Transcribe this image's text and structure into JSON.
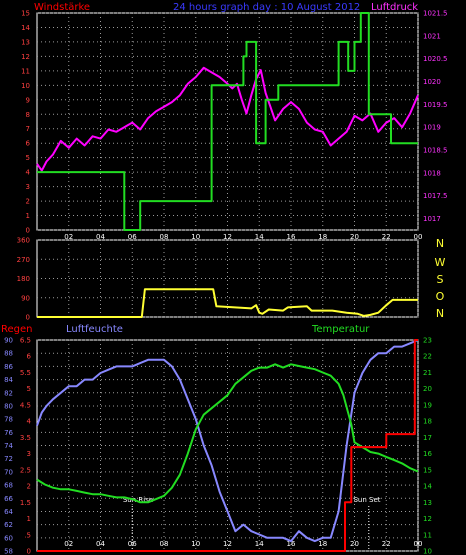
{
  "colors": {
    "background": "#000000",
    "frame": "#ffffff",
    "grid": "#9a9a9a",
    "wind": "#ff0000",
    "title": "#3a3aff",
    "pressure": "#ff33ff",
    "pressure_line": "#ff00ff",
    "wind_line": "#22dd22",
    "direction_line": "#ffff33",
    "rain": "#ff0000",
    "humidity": "#8888ff",
    "temperature": "#22dd22",
    "direction_label": "#ffff33",
    "sun": "#ffffff"
  },
  "top_chart": {
    "title": "24 hours graph day : 10 August 2012",
    "left_label": "Windstärke",
    "right_label": "Luftdruck"
  },
  "mid_chart": {
    "compass_labels": [
      "N",
      "W",
      "S",
      "O",
      "N"
    ]
  },
  "bottom_chart": {
    "rain_label": "Regen",
    "humidity_label": "Luftfeuchte",
    "temperature_label": "Temperatur",
    "sunrise_label": "Sun Rise",
    "sunset_label": "Sun Set"
  },
  "chart_data": [
    {
      "type": "line",
      "title": "24 hours graph day : 10 August 2012",
      "xlabel": "",
      "xlim": [
        0,
        24
      ],
      "x_ticks": [
        "02",
        "04",
        "06",
        "08",
        "10",
        "12",
        "14",
        "16",
        "18",
        "20",
        "22",
        "00"
      ],
      "y_left": {
        "label": "Windstärke",
        "ylim": [
          0,
          15
        ],
        "ticks": [
          "0",
          "1",
          "2",
          "3",
          "4",
          "5",
          "6",
          "7",
          "8",
          "9",
          "10",
          "11",
          "12",
          "13",
          "14",
          "15"
        ]
      },
      "y_right": {
        "label": "Luftdruck",
        "ylim": [
          1016.75,
          1021.5
        ],
        "ticks": [
          "1017",
          "1017.5",
          "1018",
          "1018.5",
          "1019",
          "1019.5",
          "1020",
          "1020.5",
          "1021",
          "1021.5"
        ]
      },
      "grid": true,
      "series": [
        {
          "name": "Luftdruck",
          "axis": "right",
          "color": "#ff00ff",
          "x": [
            0,
            0.3,
            0.6,
            1.0,
            1.5,
            2.0,
            2.5,
            3.0,
            3.5,
            4.0,
            4.5,
            5.0,
            5.5,
            6.0,
            6.5,
            7.0,
            7.5,
            8.0,
            8.5,
            9.0,
            9.5,
            10.0,
            10.5,
            11.0,
            11.5,
            12.0,
            12.3,
            12.6,
            12.9,
            13.2,
            13.5,
            13.8,
            14.1,
            14.4,
            14.7,
            15.0,
            15.5,
            16.0,
            16.5,
            17.0,
            17.5,
            18.0,
            18.5,
            19.0,
            19.5,
            20.0,
            20.5,
            21.0,
            21.5,
            22.0,
            22.5,
            23.0,
            23.5,
            24.0
          ],
          "y": [
            1018.2,
            1018.05,
            1018.25,
            1018.4,
            1018.7,
            1018.55,
            1018.75,
            1018.6,
            1018.8,
            1018.75,
            1018.95,
            1018.9,
            1019.0,
            1019.1,
            1018.95,
            1019.2,
            1019.35,
            1019.45,
            1019.55,
            1019.7,
            1019.95,
            1020.1,
            1020.3,
            1020.2,
            1020.1,
            1019.95,
            1019.85,
            1019.95,
            1019.6,
            1019.3,
            1019.7,
            1020.05,
            1020.25,
            1019.75,
            1019.45,
            1019.15,
            1019.4,
            1019.55,
            1019.4,
            1019.1,
            1018.95,
            1018.9,
            1018.6,
            1018.75,
            1018.9,
            1019.25,
            1019.15,
            1019.3,
            1018.9,
            1019.1,
            1019.2,
            1019.0,
            1019.3,
            1019.7
          ]
        },
        {
          "name": "Windstärke",
          "axis": "left",
          "color": "#22dd22",
          "x": [
            0,
            5.5,
            5.5,
            6.5,
            6.5,
            11.0,
            11.0,
            13.0,
            13.0,
            13.2,
            13.2,
            13.8,
            13.8,
            14.4,
            14.4,
            15.2,
            15.2,
            19.0,
            19.0,
            19.6,
            19.6,
            20.0,
            20.0,
            20.4,
            20.4,
            20.9,
            20.9,
            22.3,
            22.3,
            24.0
          ],
          "y": [
            4,
            4,
            0,
            0,
            2,
            2,
            10,
            10,
            12,
            12,
            13,
            13,
            6,
            6,
            9,
            9,
            10,
            10,
            13,
            13,
            11,
            11,
            13,
            13,
            15,
            15,
            8,
            8,
            6,
            6
          ]
        }
      ]
    },
    {
      "type": "line",
      "title": "",
      "xlabel": "",
      "xlim": [
        0,
        24
      ],
      "ylim": [
        0,
        360
      ],
      "y_ticks": [
        "0",
        "90",
        "180",
        "270",
        "360"
      ],
      "grid": true,
      "series": [
        {
          "name": "",
          "color": "#ffff33",
          "x": [
            0,
            6.6,
            6.8,
            11.1,
            11.3,
            13.5,
            13.8,
            14.0,
            14.2,
            14.6,
            15.5,
            15.8,
            17.0,
            17.3,
            18.6,
            19.5,
            20.2,
            20.6,
            21.0,
            21.5,
            22.0,
            22.4,
            24.0
          ],
          "y": [
            0,
            0,
            130,
            130,
            50,
            40,
            55,
            20,
            15,
            35,
            30,
            45,
            50,
            30,
            30,
            20,
            15,
            5,
            10,
            20,
            55,
            80,
            80
          ]
        }
      ]
    },
    {
      "type": "line",
      "title": "",
      "xlabel": "",
      "xlim": [
        0,
        24
      ],
      "x_ticks": [
        "02",
        "04",
        "06",
        "08",
        "10",
        "12",
        "14",
        "16",
        "18",
        "20",
        "22",
        "00"
      ],
      "y_rain": {
        "label": "Regen",
        "ylim": [
          0,
          6.5
        ],
        "ticks": [
          "0",
          ".5",
          "1",
          "1.5",
          "2",
          "2.5",
          "3",
          "3.5",
          "4",
          "4.5",
          "5",
          "5.5",
          "6",
          "6.5"
        ]
      },
      "y_humidity": {
        "label": "Luftfeuchte",
        "ylim": [
          58,
          90
        ],
        "ticks": [
          "58",
          "60",
          "62",
          "64",
          "66",
          "68",
          "70",
          "72",
          "74",
          "76",
          "78",
          "80",
          "82",
          "84",
          "86",
          "88",
          "90"
        ]
      },
      "y_temperature": {
        "label": "Temperatur",
        "ylim": [
          10,
          23
        ],
        "ticks": [
          "10",
          "11",
          "12",
          "13",
          "14",
          "15",
          "16",
          "17",
          "18",
          "19",
          "20",
          "21",
          "22",
          "23"
        ]
      },
      "grid": true,
      "series": [
        {
          "name": "Regen",
          "axis": "rain",
          "color": "#ff0000",
          "x": [
            0,
            19.4,
            19.4,
            19.8,
            19.8,
            22.0,
            22.0,
            23.8,
            23.8,
            24.0
          ],
          "y": [
            0,
            0,
            1.5,
            1.5,
            3.2,
            3.2,
            3.6,
            3.6,
            6.5,
            6.5
          ]
        },
        {
          "name": "Luftfeuchte",
          "axis": "humidity",
          "color": "#8888ff",
          "x": [
            0,
            0.3,
            0.6,
            1.0,
            1.5,
            2.0,
            2.5,
            3.0,
            3.5,
            4.0,
            4.5,
            5.0,
            5.5,
            6.0,
            6.5,
            7.0,
            7.5,
            8.0,
            8.5,
            9.0,
            9.5,
            10.0,
            10.5,
            11.0,
            11.5,
            12.0,
            12.5,
            13.0,
            13.5,
            14.0,
            14.5,
            15.0,
            15.5,
            16.0,
            16.5,
            17.0,
            17.5,
            18.0,
            18.5,
            19.0,
            19.5,
            20.0,
            20.5,
            21.0,
            21.5,
            22.0,
            22.5,
            23.0,
            23.5,
            24.0
          ],
          "y": [
            77,
            79,
            80,
            81,
            82,
            83,
            83,
            84,
            84,
            85,
            85.5,
            86,
            86,
            86,
            86.5,
            87,
            87,
            87,
            86,
            84,
            81,
            78,
            74,
            71,
            67,
            64,
            61,
            62,
            61,
            60.5,
            60,
            60,
            60,
            59.5,
            61,
            60,
            59.5,
            60,
            60,
            64,
            74,
            82,
            85,
            87,
            88,
            88,
            89,
            89,
            89.5,
            90
          ]
        },
        {
          "name": "Temperatur",
          "axis": "temperature",
          "color": "#22dd22",
          "x": [
            0,
            0.5,
            1.0,
            1.5,
            2.0,
            2.5,
            3.0,
            3.5,
            4.0,
            4.5,
            5.0,
            5.5,
            6.0,
            6.5,
            7.0,
            7.5,
            8.0,
            8.5,
            9.0,
            9.5,
            10.0,
            10.5,
            11.0,
            11.5,
            12.0,
            12.5,
            13.0,
            13.5,
            14.0,
            14.5,
            15.0,
            15.5,
            16.0,
            16.5,
            17.0,
            17.5,
            18.0,
            18.5,
            19.0,
            19.3,
            19.6,
            19.8,
            20.0,
            20.5,
            21.0,
            21.5,
            22.0,
            22.5,
            23.0,
            23.5,
            24.0
          ],
          "y": [
            14.4,
            14.1,
            13.9,
            13.8,
            13.8,
            13.7,
            13.6,
            13.5,
            13.5,
            13.4,
            13.3,
            13.3,
            13.2,
            13.0,
            13.0,
            13.2,
            13.4,
            13.9,
            14.7,
            16.0,
            17.5,
            18.4,
            18.8,
            19.2,
            19.6,
            20.3,
            20.7,
            21.1,
            21.3,
            21.3,
            21.5,
            21.3,
            21.5,
            21.4,
            21.3,
            21.2,
            21.0,
            20.8,
            20.3,
            19.6,
            18.5,
            17.8,
            16.7,
            16.4,
            16.1,
            16.0,
            15.8,
            15.6,
            15.4,
            15.1,
            14.9
          ]
        }
      ],
      "annotations": [
        {
          "label": "Sun Rise",
          "x": 6.0
        },
        {
          "label": "Sun Set",
          "x": 20.9
        }
      ]
    }
  ]
}
